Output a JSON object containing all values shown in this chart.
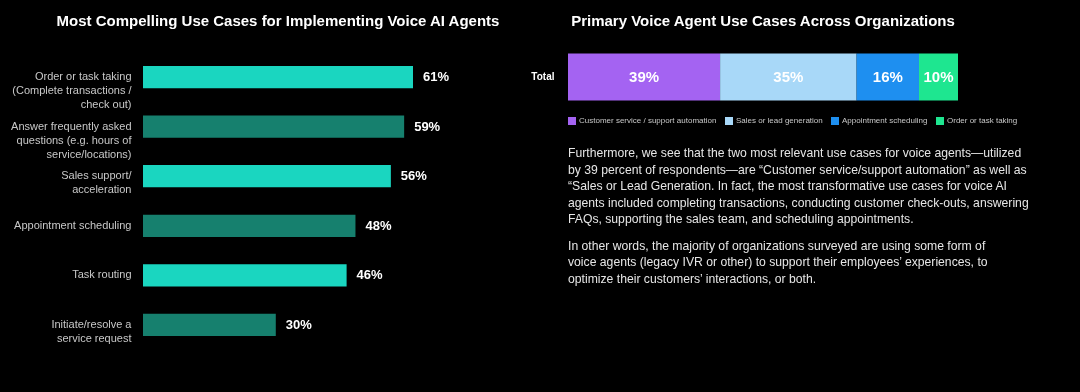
{
  "chart_data": [
    {
      "type": "bar",
      "orientation": "horizontal",
      "title": "Most Compelling Use Cases for Implementing Voice AI Agents",
      "tick_labels": "y",
      "categories": [
        "Order or task taking (Complete transactions / check out)",
        "Answer frequently asked questions (e.g. hours of service/locations)",
        "Sales support/ acceleration",
        "Appointment scheduling",
        "Task routing",
        "Initiate/resolve a service request"
      ],
      "values": [
        61,
        59,
        56,
        48,
        46,
        30
      ],
      "colors": [
        "#1ad6c0",
        "#16806e",
        "#1ad6c0",
        "#16806e",
        "#1ad6c0",
        "#16806e"
      ],
      "value_labels": [
        "61%",
        "59%",
        "56%",
        "48%",
        "46%",
        "30%"
      ]
    },
    {
      "type": "bar",
      "orientation": "horizontal",
      "stacked": true,
      "title": "Primary Voice Agent Use Cases Across Organizations",
      "tick_labels": "y",
      "legend": "bottom",
      "categories": [
        "Total"
      ],
      "series": [
        {
          "name": "Customer service / support automation",
          "color": "#a463f2",
          "values": [
            39
          ],
          "value_labels": [
            "39%"
          ]
        },
        {
          "name": "Sales or lead generation",
          "color": "#a8d8f8",
          "values": [
            35
          ],
          "value_labels": [
            "35%"
          ]
        },
        {
          "name": "Appointment scheduling",
          "color": "#1e8ff0",
          "values": [
            16
          ],
          "value_labels": [
            "16%"
          ]
        },
        {
          "name": "Order or task taking",
          "color": "#1ee690",
          "values": [
            10
          ],
          "value_labels": [
            "10%"
          ]
        }
      ],
      "annotations": [
        "Furthermore, we see that the two most relevant use cases for voice agents—utilized by 39 percent of respondents—are “Customer service/support automation” as well as “Sales or Lead Generation. In fact, the most transformative use cases for voice AI agents included completing transactions, conducting customer check-outs, answering FAQs, supporting the sales team, and scheduling appointments.",
        "In other words, the majority of organizations surveyed are using some form of voice agents (legacy IVR or other) to support their employees’ experiences, to optimize their customers’ interactions, or both."
      ]
    }
  ]
}
